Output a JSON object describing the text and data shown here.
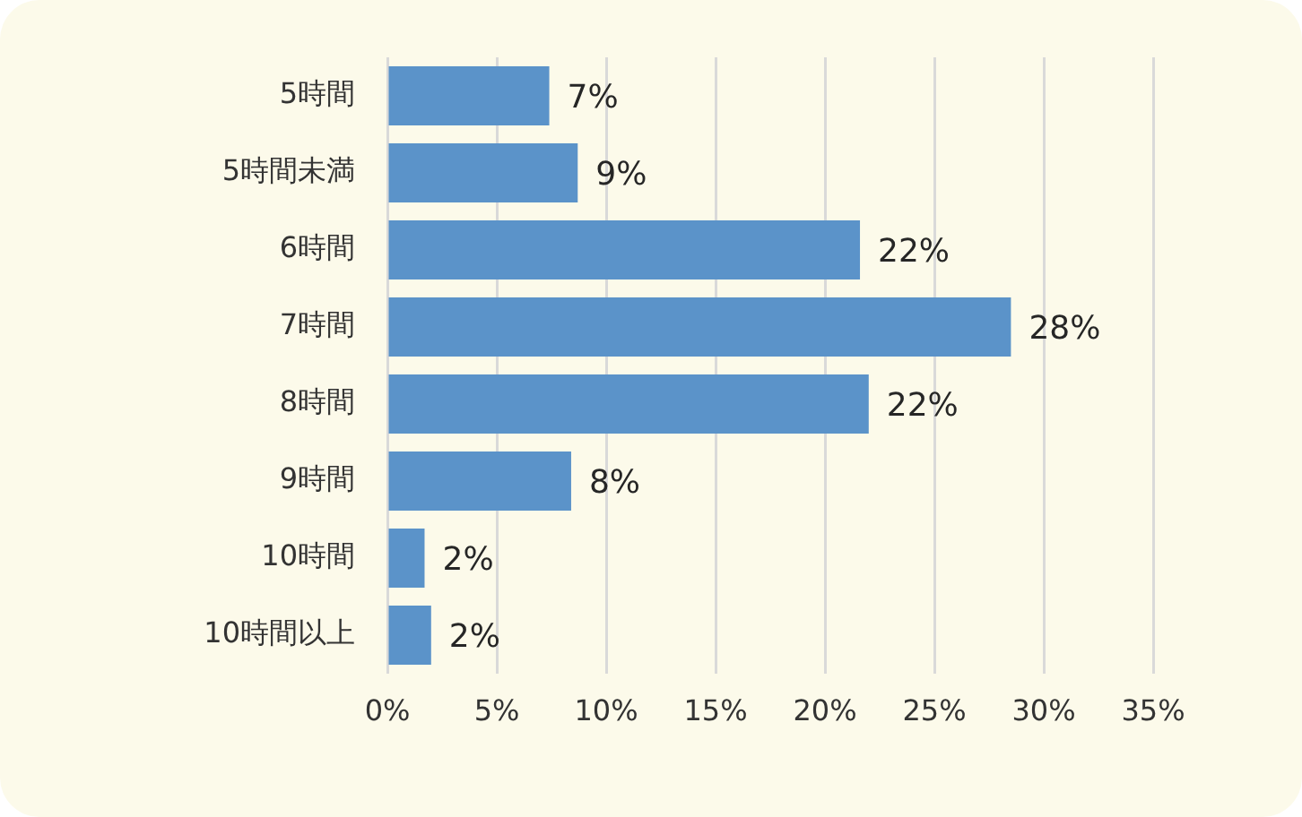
{
  "chart_data": {
    "type": "bar",
    "orientation": "horizontal",
    "categories": [
      "5時間",
      "5時間未満",
      "6時間",
      "7時間",
      "8時間",
      "9時間",
      "10時間",
      "10時間以上"
    ],
    "values": [
      7.4,
      8.7,
      21.6,
      28.5,
      22,
      8.4,
      1.7,
      2
    ],
    "value_labels": [
      "7%",
      "9%",
      "22%",
      "28%",
      "22%",
      "8%",
      "2%",
      "2%"
    ],
    "color": "#5b93c9",
    "xlim": [
      0,
      35
    ],
    "xticks": [
      {
        "value": 0,
        "label": "0%"
      },
      {
        "value": 5,
        "label": "5%"
      },
      {
        "value": 10,
        "label": "10%"
      },
      {
        "value": 15,
        "label": "15%"
      },
      {
        "value": 20,
        "label": "20%"
      },
      {
        "value": 25,
        "label": "25%"
      },
      {
        "value": 30,
        "label": "30%"
      },
      {
        "value": 35,
        "label": "35%"
      }
    ],
    "grid": "x"
  }
}
